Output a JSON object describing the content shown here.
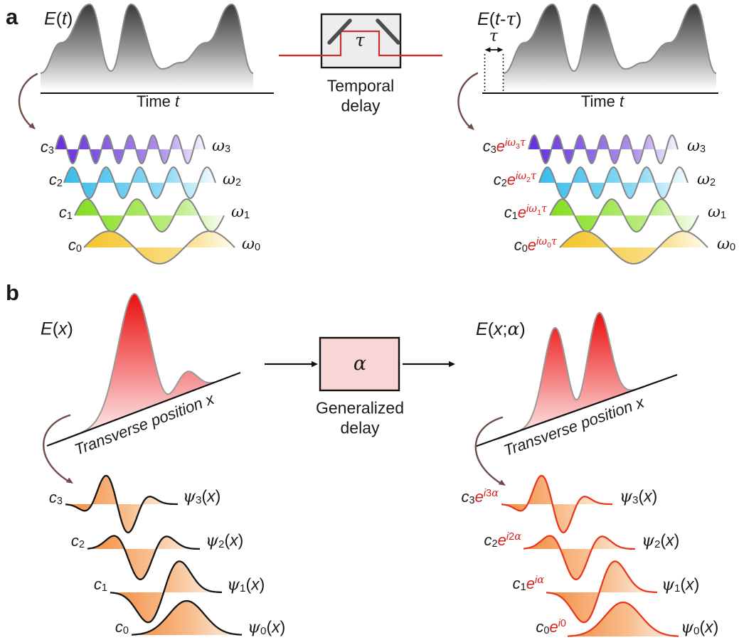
{
  "colors": {
    "purple": "#5c22d9",
    "cyan": "#2cb9ea",
    "green": "#7edc12",
    "yellow": "#f4c11f",
    "orange": "#f2832f",
    "red_text": "#d81f1f",
    "red_stroke": "#e8391f",
    "beam_red": "#c92f2f",
    "arrow_brown": "#6f4d49",
    "mirror_gray": "#4d4d4d",
    "box_gray_fill": "#ededed",
    "box_pink_fill": "#f9d6d6",
    "mode_stroke": "#151515",
    "wave_stroke": "#858585",
    "train_top": "#383838",
    "profile_red": "#ea0f0f"
  },
  "panel_a": {
    "tag": "a",
    "left_title": [
      {
        "t": "E",
        "c": "i"
      },
      {
        "t": "(",
        "c": ""
      },
      {
        "t": "t",
        "c": "i"
      },
      {
        "t": ")",
        "c": ""
      }
    ],
    "left_axis_label": [
      {
        "t": "Time ",
        "c": ""
      },
      {
        "t": "t",
        "c": "i"
      }
    ],
    "components_left": [
      {
        "n": 3,
        "cycles": 6.5,
        "color_key": "purple",
        "coef": [
          {
            "t": "c",
            "c": "i"
          },
          {
            "t": "3",
            "c": "sub"
          }
        ],
        "freq": [
          {
            "t": "ω",
            "c": "g"
          },
          {
            "t": "3",
            "c": "sub"
          }
        ]
      },
      {
        "n": 2,
        "cycles": 4.5,
        "color_key": "cyan",
        "coef": [
          {
            "t": "c",
            "c": "i"
          },
          {
            "t": "2",
            "c": "sub"
          }
        ],
        "freq": [
          {
            "t": "ω",
            "c": "g"
          },
          {
            "t": "2",
            "c": "sub"
          }
        ]
      },
      {
        "n": 1,
        "cycles": 3,
        "color_key": "green",
        "coef": [
          {
            "t": "c",
            "c": "i"
          },
          {
            "t": "1",
            "c": "sub"
          }
        ],
        "freq": [
          {
            "t": "ω",
            "c": "g"
          },
          {
            "t": "1",
            "c": "sub"
          }
        ]
      },
      {
        "n": 0,
        "cycles": 1.5,
        "color_key": "yellow",
        "coef": [
          {
            "t": "c",
            "c": "i"
          },
          {
            "t": "0",
            "c": "sub"
          }
        ],
        "freq": [
          {
            "t": "ω",
            "c": "g"
          },
          {
            "t": "0",
            "c": "sub"
          }
        ]
      }
    ],
    "delay_box": {
      "symbol": [
        {
          "t": "τ",
          "c": "g"
        }
      ],
      "caption_line1": "Temporal",
      "caption_line2": "delay"
    },
    "right_title": [
      {
        "t": "E",
        "c": "i"
      },
      {
        "t": "(",
        "c": ""
      },
      {
        "t": "t",
        "c": "i"
      },
      {
        "t": "-",
        "c": ""
      },
      {
        "t": "τ",
        "c": "g"
      },
      {
        "t": ")",
        "c": ""
      }
    ],
    "tau_marker": [
      {
        "t": "τ",
        "c": "g"
      }
    ],
    "right_axis_label": [
      {
        "t": "Time ",
        "c": ""
      },
      {
        "t": "t",
        "c": "i"
      }
    ],
    "components_right": [
      {
        "n": 3,
        "cycles": 6.5,
        "color_key": "purple",
        "coef": [
          {
            "t": "c",
            "c": "i"
          },
          {
            "t": "3",
            "c": "sub"
          },
          {
            "t": "e",
            "c": "i r"
          },
          {
            "t": "i",
            "c": "sup i r"
          },
          {
            "t": "ω",
            "c": "sup g r"
          },
          {
            "t": "3",
            "c": "ss r"
          },
          {
            "t": "τ",
            "c": "sup g r"
          }
        ],
        "freq": [
          {
            "t": "ω",
            "c": "g"
          },
          {
            "t": "3",
            "c": "sub"
          }
        ]
      },
      {
        "n": 2,
        "cycles": 4.5,
        "color_key": "cyan",
        "coef": [
          {
            "t": "c",
            "c": "i"
          },
          {
            "t": "2",
            "c": "sub"
          },
          {
            "t": "e",
            "c": "i r"
          },
          {
            "t": "i",
            "c": "sup i r"
          },
          {
            "t": "ω",
            "c": "sup g r"
          },
          {
            "t": "2",
            "c": "ss r"
          },
          {
            "t": "τ",
            "c": "sup g r"
          }
        ],
        "freq": [
          {
            "t": "ω",
            "c": "g"
          },
          {
            "t": "2",
            "c": "sub"
          }
        ]
      },
      {
        "n": 1,
        "cycles": 3,
        "color_key": "green",
        "coef": [
          {
            "t": "c",
            "c": "i"
          },
          {
            "t": "1",
            "c": "sub"
          },
          {
            "t": "e",
            "c": "i r"
          },
          {
            "t": "i",
            "c": "sup i r"
          },
          {
            "t": "ω",
            "c": "sup g r"
          },
          {
            "t": "1",
            "c": "ss r"
          },
          {
            "t": "τ",
            "c": "sup g r"
          }
        ],
        "freq": [
          {
            "t": "ω",
            "c": "g"
          },
          {
            "t": "1",
            "c": "sub"
          }
        ]
      },
      {
        "n": 0,
        "cycles": 1.5,
        "color_key": "yellow",
        "coef": [
          {
            "t": "c",
            "c": "i"
          },
          {
            "t": "0",
            "c": "sub"
          },
          {
            "t": "e",
            "c": "i r"
          },
          {
            "t": "i",
            "c": "sup i r"
          },
          {
            "t": "ω",
            "c": "sup g r"
          },
          {
            "t": "0",
            "c": "ss r"
          },
          {
            "t": "τ",
            "c": "sup g r"
          }
        ],
        "freq": [
          {
            "t": "ω",
            "c": "g"
          },
          {
            "t": "0",
            "c": "sub"
          }
        ]
      }
    ]
  },
  "panel_b": {
    "tag": "b",
    "left_title": [
      {
        "t": "E",
        "c": "i"
      },
      {
        "t": "(",
        "c": ""
      },
      {
        "t": "x",
        "c": "i"
      },
      {
        "t": ")",
        "c": ""
      }
    ],
    "left_axis_label": [
      {
        "t": "Transverse position x",
        "c": "i"
      }
    ],
    "delay_box": {
      "symbol": [
        {
          "t": "α",
          "c": "g"
        }
      ],
      "caption_line1": "Generalized",
      "caption_line2": "delay"
    },
    "right_title": [
      {
        "t": "E",
        "c": "i"
      },
      {
        "t": "(",
        "c": ""
      },
      {
        "t": "x",
        "c": "i"
      },
      {
        "t": ";",
        "c": ""
      },
      {
        "t": "α",
        "c": "g"
      },
      {
        "t": ")",
        "c": ""
      }
    ],
    "right_axis_label": [
      {
        "t": "Transverse position x",
        "c": "i"
      }
    ],
    "modes_left": [
      {
        "n": 3,
        "coef": [
          {
            "t": "c",
            "c": "i"
          },
          {
            "t": "3",
            "c": "sub"
          }
        ],
        "label": [
          {
            "t": "ψ",
            "c": "g"
          },
          {
            "t": "3",
            "c": "sub"
          },
          {
            "t": "(",
            "c": ""
          },
          {
            "t": "x",
            "c": "i"
          },
          {
            "t": ")",
            "c": ""
          }
        ]
      },
      {
        "n": 2,
        "coef": [
          {
            "t": "c",
            "c": "i"
          },
          {
            "t": "2",
            "c": "sub"
          }
        ],
        "label": [
          {
            "t": "ψ",
            "c": "g"
          },
          {
            "t": "2",
            "c": "sub"
          },
          {
            "t": "(",
            "c": ""
          },
          {
            "t": "x",
            "c": "i"
          },
          {
            "t": ")",
            "c": ""
          }
        ]
      },
      {
        "n": 1,
        "coef": [
          {
            "t": "c",
            "c": "i"
          },
          {
            "t": "1",
            "c": "sub"
          }
        ],
        "label": [
          {
            "t": "ψ",
            "c": "g"
          },
          {
            "t": "1",
            "c": "sub"
          },
          {
            "t": "(",
            "c": ""
          },
          {
            "t": "x",
            "c": "i"
          },
          {
            "t": ")",
            "c": ""
          }
        ]
      },
      {
        "n": 0,
        "coef": [
          {
            "t": "c",
            "c": "i"
          },
          {
            "t": "0",
            "c": "sub"
          }
        ],
        "label": [
          {
            "t": "ψ",
            "c": "g"
          },
          {
            "t": "0",
            "c": "sub"
          },
          {
            "t": "(",
            "c": ""
          },
          {
            "t": "x",
            "c": "i"
          },
          {
            "t": ")",
            "c": ""
          }
        ]
      }
    ],
    "modes_right": [
      {
        "n": 3,
        "coef": [
          {
            "t": "c",
            "c": "i"
          },
          {
            "t": "3",
            "c": "sub"
          },
          {
            "t": "e",
            "c": "i r"
          },
          {
            "t": "i",
            "c": "sup i r"
          },
          {
            "t": "3",
            "c": "sup r"
          },
          {
            "t": "α",
            "c": "sup g r"
          }
        ],
        "label": [
          {
            "t": "ψ",
            "c": "g"
          },
          {
            "t": "3",
            "c": "sub"
          },
          {
            "t": "(",
            "c": ""
          },
          {
            "t": "x",
            "c": "i"
          },
          {
            "t": ")",
            "c": ""
          }
        ]
      },
      {
        "n": 2,
        "coef": [
          {
            "t": "c",
            "c": "i"
          },
          {
            "t": "2",
            "c": "sub"
          },
          {
            "t": "e",
            "c": "i r"
          },
          {
            "t": "i",
            "c": "sup i r"
          },
          {
            "t": "2",
            "c": "sup r"
          },
          {
            "t": "α",
            "c": "sup g r"
          }
        ],
        "label": [
          {
            "t": "ψ",
            "c": "g"
          },
          {
            "t": "2",
            "c": "sub"
          },
          {
            "t": "(",
            "c": ""
          },
          {
            "t": "x",
            "c": "i"
          },
          {
            "t": ")",
            "c": ""
          }
        ]
      },
      {
        "n": 1,
        "coef": [
          {
            "t": "c",
            "c": "i"
          },
          {
            "t": "1",
            "c": "sub"
          },
          {
            "t": "e",
            "c": "i r"
          },
          {
            "t": "i",
            "c": "sup i r"
          },
          {
            "t": "α",
            "c": "sup g r"
          }
        ],
        "label": [
          {
            "t": "ψ",
            "c": "g"
          },
          {
            "t": "1",
            "c": "sub"
          },
          {
            "t": "(",
            "c": ""
          },
          {
            "t": "x",
            "c": "i"
          },
          {
            "t": ")",
            "c": ""
          }
        ]
      },
      {
        "n": 0,
        "coef": [
          {
            "t": "c",
            "c": "i"
          },
          {
            "t": "0",
            "c": "sub"
          },
          {
            "t": "e",
            "c": "i r"
          },
          {
            "t": "i",
            "c": "sup i r"
          },
          {
            "t": "0",
            "c": "sup r"
          }
        ],
        "label": [
          {
            "t": "ψ",
            "c": "g"
          },
          {
            "t": "0",
            "c": "sub"
          },
          {
            "t": "(",
            "c": ""
          },
          {
            "t": "x",
            "c": "i"
          },
          {
            "t": ")",
            "c": ""
          }
        ]
      }
    ]
  }
}
